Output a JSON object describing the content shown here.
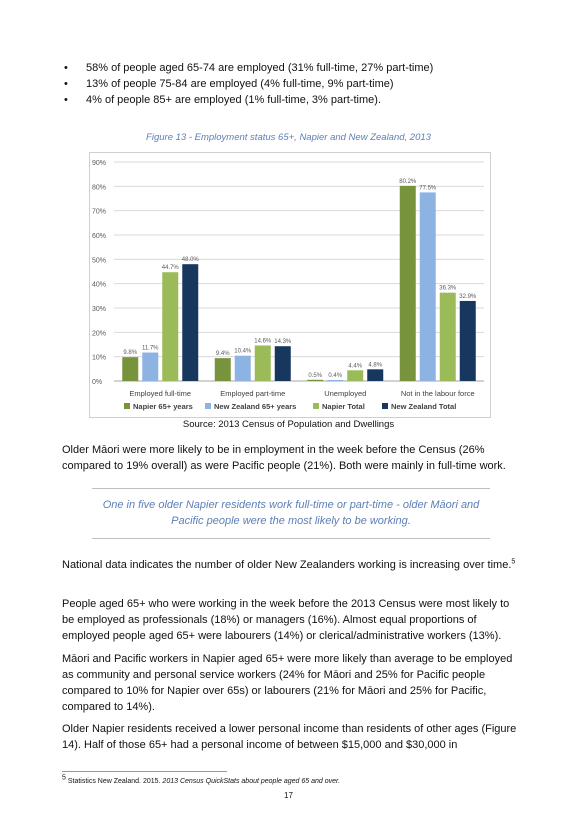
{
  "bullets": [
    "58% of people aged 65-74 are employed (31% full-time, 27% part-time)",
    "13% of people 75-84 are employed (4% full-time, 9% part-time)",
    "4% of people 85+ are employed (1% full-time, 3% part-time)."
  ],
  "figure_title": "Figure 13 - Employment status 65+, Napier and New Zealand, 2013",
  "chart_data": {
    "type": "bar",
    "categories": [
      "Employed full-time",
      "Employed part-time",
      "Unemployed",
      "Not in the labour force"
    ],
    "series": [
      {
        "name": "Napier 65+ years",
        "color": "#77933c",
        "values": [
          9.8,
          9.4,
          0.5,
          80.2
        ],
        "labels": [
          "9.8%",
          "9.4%",
          "0.5%",
          "80.2%"
        ]
      },
      {
        "name": "New Zealand 65+ years",
        "color": "#8db3e2",
        "values": [
          11.7,
          10.4,
          0.4,
          77.5
        ],
        "labels": [
          "11.7%",
          "10.4%",
          "0.4%",
          "77.5%"
        ]
      },
      {
        "name": "Napier Total",
        "color": "#9bbb59",
        "values": [
          44.7,
          14.6,
          4.4,
          36.3
        ],
        "labels": [
          "44.7%",
          "14.6%",
          "4.4%",
          "36.3%"
        ]
      },
      {
        "name": "New Zealand Total",
        "color": "#17375e",
        "values": [
          48.0,
          14.3,
          4.8,
          32.9
        ],
        "labels": [
          "48.0%",
          "14.3%",
          "4.8%",
          "32.9%"
        ]
      }
    ],
    "y_ticks": [
      "0%",
      "10%",
      "20%",
      "30%",
      "40%",
      "50%",
      "60%",
      "70%",
      "80%",
      "90%"
    ],
    "ylim": [
      0,
      90
    ],
    "grid": true,
    "legend_position": "bottom"
  },
  "source": "Source: 2013 Census of Population and Dwellings",
  "para1": "Older Māori were more likely to be in employment in the week before the Census (26% compared to 19% overall) as were Pacific people (21%). Both were mainly in full-time work.",
  "callout": "One in five older Napier residents work full-time or part-time - older Māori and Pacific people were the most likely to be working.",
  "para2": "National data indicates the number of older New Zealanders working is increasing over time.",
  "para2_ref": "5",
  "para3": "People aged 65+ who were working in the week before the 2013 Census were most likely to be employed as professionals (18%) or managers (16%). Almost equal proportions of employed people aged 65+ were labourers (14%) or clerical/administrative workers (13%).",
  "para4": "Māori and Pacific workers in Napier aged 65+ were more likely than average to be employed as community and personal service workers (24% for Māori and 25% for Pacific people compared to 10% for Napier over 65s) or labourers (21% for Māori and 25% for Pacific, compared to 14%).",
  "para5": "Older Napier residents received a lower personal income than residents of other ages (Figure 14). Half of those 65+ had a personal income of between $15,000 and $30,000 in",
  "footnote": {
    "number": "5",
    "text": "Statistics New Zealand. 2015. ",
    "title": "2013 Census QuickStats about people aged 65 and over."
  },
  "page_number": "17"
}
